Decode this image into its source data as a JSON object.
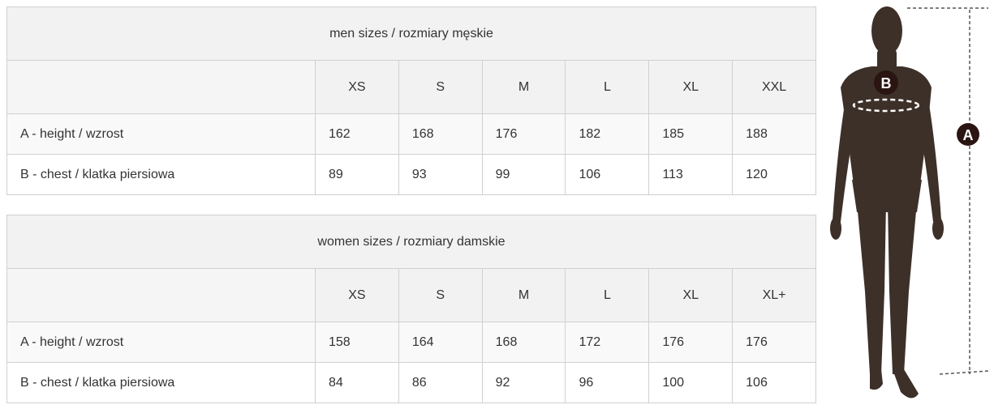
{
  "men": {
    "title": "men sizes / rozmiary męskie",
    "sizes": [
      "XS",
      "S",
      "M",
      "L",
      "XL",
      "XXL"
    ],
    "rows": [
      {
        "label": "A - height / wzrost",
        "values": [
          "162",
          "168",
          "176",
          "182",
          "185",
          "188"
        ]
      },
      {
        "label": "B - chest / klatka piersiowa",
        "values": [
          "89",
          "93",
          "99",
          "106",
          "113",
          "120"
        ]
      }
    ]
  },
  "women": {
    "title": "women sizes / rozmiary damskie",
    "sizes": [
      "XS",
      "S",
      "M",
      "L",
      "XL",
      "XL+"
    ],
    "rows": [
      {
        "label": "A - height / wzrost",
        "values": [
          "158",
          "164",
          "168",
          "172",
          "176",
          "176"
        ]
      },
      {
        "label": "B - chest / klatka piersiowa",
        "values": [
          "84",
          "86",
          "92",
          "96",
          "100",
          "106"
        ]
      }
    ]
  },
  "figure": {
    "marker_a": "A",
    "marker_b": "B",
    "silhouette_color": "#3d3029",
    "marker_color": "#2a1512",
    "line_color": "#555555"
  }
}
